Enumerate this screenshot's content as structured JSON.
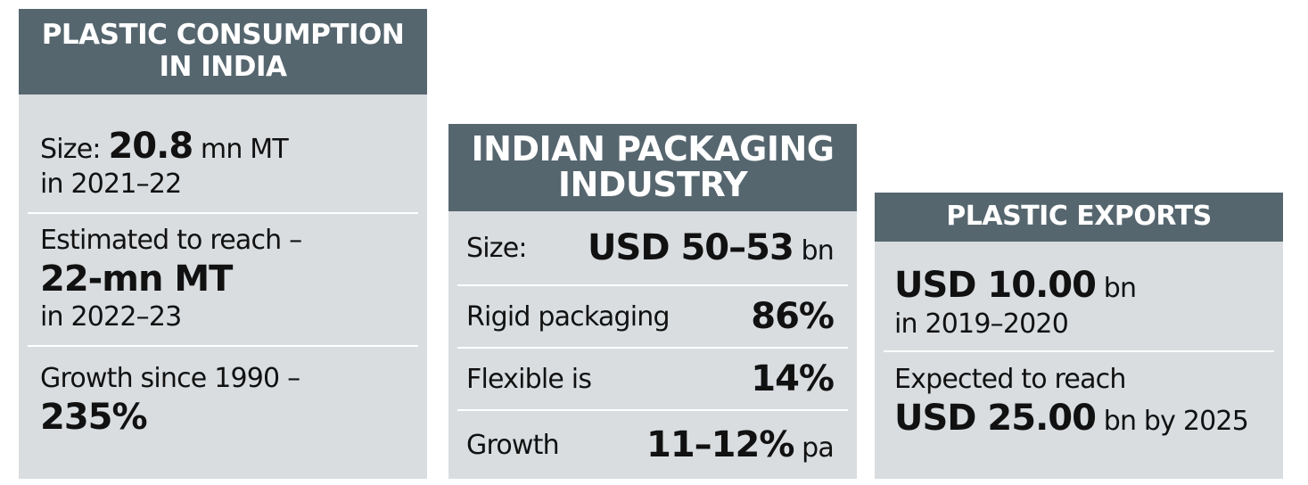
{
  "card1": {
    "title_line1": "PLASTIC CONSUMPTION",
    "title_line2": "IN INDIA",
    "size_label": "Size:",
    "size_value": "20.8",
    "size_unit": "mn MT",
    "size_year": "in 2021–22",
    "estimate_label": "Estimated to reach –",
    "estimate_value": "22-mn MT",
    "estimate_year": "in 2022–23",
    "growth_label": "Growth since 1990 –",
    "growth_value": "235%"
  },
  "card2": {
    "title_line1": "INDIAN PACKAGING",
    "title_line2": "INDUSTRY",
    "rows": [
      {
        "label": "Size:",
        "value": "USD 50–53",
        "unit": "bn"
      },
      {
        "label": "Rigid packaging",
        "value": "86%",
        "unit": ""
      },
      {
        "label": "Flexible is",
        "value": "14%",
        "unit": ""
      },
      {
        "label": "Growth",
        "value": "11–12%",
        "unit": "pa"
      }
    ]
  },
  "card3": {
    "title": "PLASTIC EXPORTS",
    "value1": "USD 10.00",
    "unit1": "bn",
    "year1": "in 2019–2020",
    "expect_label": "Expected to reach",
    "value2": "USD 25.00",
    "unit2": "bn by 2025"
  },
  "colors": {
    "header_bg": "#56666f",
    "card_bg": "#d9dde0",
    "separator": "#ffffff",
    "text": "#111111"
  }
}
